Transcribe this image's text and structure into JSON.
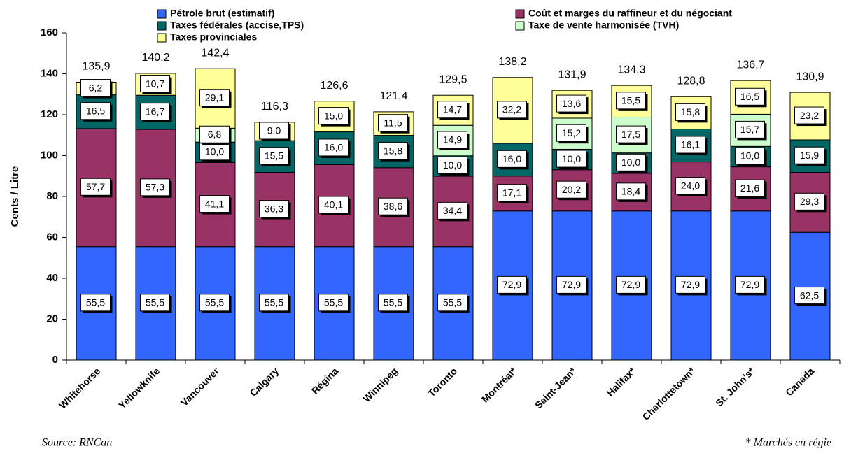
{
  "chart_data": {
    "type": "stacked_bar",
    "y_label": "Cents / Litre",
    "source": "Source: RNCan",
    "note": "* Marchés en régie",
    "categories": [
      "Whitehorse",
      "Yellowknife",
      "Vancouver",
      "Calgary",
      "Régina",
      "Winnipeg",
      "Toronto",
      "Montréal*",
      "Saint-Jean*",
      "Halifax*",
      "Charlottetown*",
      "St. John's*",
      "Canada"
    ],
    "series": [
      {
        "name": "Pétrole brut (estimatif)",
        "color": "#3366ff",
        "values": [
          55.5,
          55.5,
          55.5,
          55.5,
          55.5,
          55.5,
          55.5,
          72.9,
          72.9,
          72.9,
          72.9,
          72.9,
          62.5
        ],
        "value_labels": [
          "55,5",
          "55,5",
          "55,5",
          "55,5",
          "55,5",
          "55,5",
          "55,5",
          "72,9",
          "72,9",
          "72,9",
          "72,9",
          "72,9",
          "62,5"
        ]
      },
      {
        "name": "Coût et marges du raffineur et du négociant",
        "color": "#993366",
        "values": [
          57.7,
          57.3,
          41.1,
          36.3,
          40.1,
          38.6,
          34.4,
          17.1,
          20.2,
          18.4,
          24.0,
          21.6,
          29.3
        ],
        "value_labels": [
          "57,7",
          "57,3",
          "41,1",
          "36,3",
          "40,1",
          "38,6",
          "34,4",
          "17,1",
          "20,2",
          "18,4",
          "24,0",
          "21,6",
          "29,3"
        ]
      },
      {
        "name": "Taxes fédérales (accise,TPS)",
        "color": "#006666",
        "values": [
          16.5,
          16.7,
          10.0,
          15.5,
          16.0,
          15.8,
          10.0,
          16.0,
          10.0,
          10.0,
          16.1,
          10.0,
          15.9
        ],
        "value_labels": [
          "16,5",
          "16,7",
          "10,0",
          "15,5",
          "16,0",
          "15,8",
          "10,0",
          "16,0",
          "10,0",
          "10,0",
          "16,1",
          "10,0",
          "15,9"
        ]
      },
      {
        "name": "Taxe de vente harmonisée (TVH)",
        "color": "#ccffcc",
        "values": [
          null,
          null,
          6.8,
          null,
          null,
          null,
          14.9,
          null,
          15.2,
          17.5,
          null,
          15.7,
          null
        ],
        "value_labels": [
          null,
          null,
          "6,8",
          null,
          null,
          null,
          "14,9",
          null,
          "15,2",
          "17,5",
          null,
          "15,7",
          null
        ]
      },
      {
        "name": "Taxes provinciales",
        "color": "#ffff99",
        "values": [
          6.2,
          10.7,
          29.1,
          9.0,
          15.0,
          11.5,
          14.7,
          32.2,
          13.6,
          15.5,
          15.8,
          16.5,
          23.2
        ],
        "value_labels": [
          "6,2",
          "10,7",
          "29,1",
          "9,0",
          "15,0",
          "11,5",
          "14,7",
          "32,2",
          "13,6",
          "15,5",
          "15,8",
          "16,5",
          "23,2"
        ]
      }
    ],
    "totals": {
      "values": [
        135.9,
        140.2,
        142.4,
        116.3,
        126.6,
        121.4,
        129.5,
        138.2,
        131.9,
        134.3,
        128.8,
        136.7,
        130.9
      ],
      "value_labels": [
        "135,9",
        "140,2",
        "142,4",
        "116,3",
        "126,6",
        "121,4",
        "129,5",
        "138,2",
        "131,9",
        "134,3",
        "128,8",
        "136,7",
        "130,9"
      ]
    },
    "ylim": [
      0,
      160
    ],
    "yticks": [
      0,
      20,
      40,
      60,
      80,
      100,
      120,
      140,
      160
    ]
  }
}
